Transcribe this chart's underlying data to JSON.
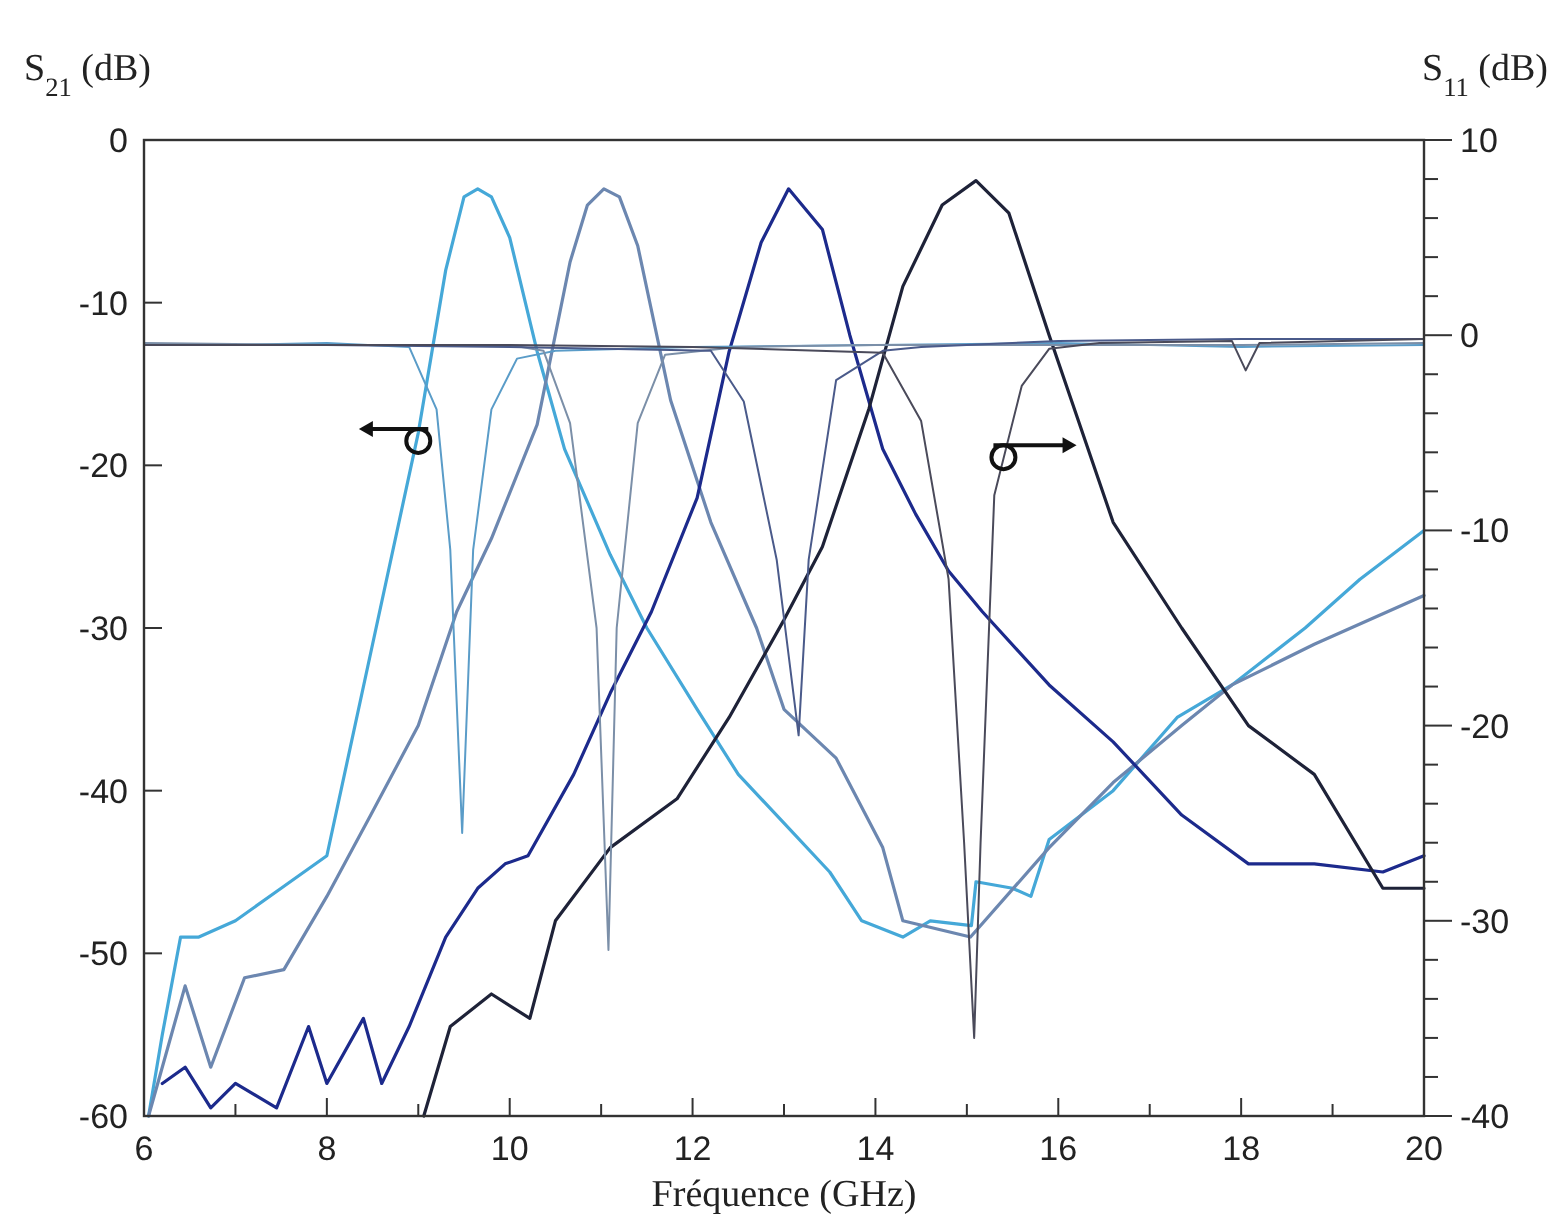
{
  "chart_data": {
    "type": "line",
    "xlabel": "Fréquence (GHz)",
    "ylabel": "S$_{21}$ (dB)",
    "y2label": "S$_{11}$ (dB)",
    "xlim": [
      6,
      20
    ],
    "xticks": [
      6,
      {
        "value": 7,
        "label": null
      },
      8,
      {
        "value": 9,
        "label": null
      },
      10,
      {
        "value": 11,
        "label": null
      },
      12,
      {
        "value": 13,
        "label": null
      },
      14,
      {
        "value": 15,
        "label": null
      },
      16,
      {
        "value": 17,
        "label": null
      },
      18,
      {
        "value": 19,
        "label": null
      },
      20
    ],
    "ylim": [
      -60,
      0
    ],
    "yticks": [
      -60,
      -50,
      -40,
      -30,
      -20,
      -10,
      0
    ],
    "y2lim": [
      -40,
      10
    ],
    "y2ticks": [
      -40,
      {
        "value": -38,
        "label": null
      },
      {
        "value": -36,
        "label": null
      },
      {
        "value": -34,
        "label": null
      },
      {
        "value": -32,
        "label": null
      },
      -30,
      {
        "value": -28,
        "label": null
      },
      {
        "value": -26,
        "label": null
      },
      {
        "value": -24,
        "label": null
      },
      {
        "value": -22,
        "label": null
      },
      -20,
      {
        "value": -18,
        "label": null
      },
      {
        "value": -16,
        "label": null
      },
      {
        "value": -14,
        "label": null
      },
      {
        "value": -12,
        "label": null
      },
      -10,
      {
        "value": -8,
        "label": null
      },
      {
        "value": -6,
        "label": null
      },
      {
        "value": -4,
        "label": null
      },
      {
        "value": -2,
        "label": null
      },
      0,
      {
        "value": 2,
        "label": null
      },
      {
        "value": 4,
        "label": null
      },
      {
        "value": 6,
        "label": null
      },
      {
        "value": 8,
        "label": null
      },
      10
    ],
    "grid": false,
    "marker": "none",
    "line_style": "solid",
    "series": [
      {
        "color": "#45a8d8",
        "x": [
          6.05,
          6.2,
          6.4,
          6.6,
          7,
          7.5,
          8,
          8.5,
          9,
          9.3,
          9.5,
          9.65,
          9.8,
          10,
          10.3,
          10.6,
          11.1,
          11.5,
          12.05,
          12.5,
          13,
          13.5,
          13.85,
          14.3,
          14.6,
          15.05,
          15.1,
          15.5,
          15.7,
          15.9,
          16.6,
          17.3,
          17.9,
          18.7,
          19.3,
          20
        ],
        "values": [
          -60,
          -55,
          -49,
          -49,
          -48,
          -46,
          -44,
          -31,
          -18,
          -8,
          -3.5,
          -3,
          -3.5,
          -6,
          -13,
          -19,
          -25.5,
          -30,
          -35,
          -39,
          -42,
          -45,
          -48,
          -49,
          -48,
          -48.3,
          -45.6,
          -46,
          -46.5,
          -43,
          -40,
          -35.5,
          -33.5,
          -30,
          -27,
          -24
        ]
      },
      {
        "color": "#6c87b0",
        "x": [
          6.05,
          6.15,
          6.45,
          6.73,
          7.1,
          7.53,
          8,
          8.48,
          9,
          9.42,
          9.8,
          10.3,
          10.66,
          10.85,
          11.03,
          11.2,
          11.4,
          11.76,
          12.2,
          12.7,
          13,
          13.57,
          14.08,
          14.3,
          15.04,
          15.9,
          16.6,
          17.35,
          17.9,
          18.8,
          20
        ],
        "values": [
          -60,
          -58,
          -52,
          -57,
          -51.5,
          -51,
          -46.5,
          -41.5,
          -36,
          -29,
          -24.5,
          -17.5,
          -7.5,
          -4,
          -3,
          -3.5,
          -6.5,
          -16,
          -23.5,
          -30,
          -35,
          -38,
          -43.5,
          -48,
          -49,
          -43.5,
          -39.5,
          -36,
          -33.5,
          -31,
          -28
        ]
      },
      {
        "color": "#1c2a8c",
        "x": [
          6.2,
          6.45,
          6.73,
          7,
          7.45,
          7.8,
          8,
          8.4,
          8.6,
          8.9,
          9.3,
          9.65,
          9.95,
          10.2,
          10.7,
          11.1,
          11.55,
          12.05,
          12.4,
          12.75,
          13.05,
          13.42,
          13.72,
          14.08,
          14.44,
          14.8,
          15.17,
          15.9,
          16.6,
          17.35,
          18.08,
          18.8,
          19.55,
          20
        ],
        "values": [
          -58,
          -57,
          -59.5,
          -58,
          -59.5,
          -54.5,
          -58,
          -54,
          -58,
          -54.5,
          -49,
          -46,
          -44.5,
          -44,
          -39,
          -34,
          -29,
          -22,
          -13,
          -6.3,
          -3,
          -5.5,
          -12,
          -19,
          -23,
          -26.5,
          -29,
          -33.5,
          -37,
          -41.5,
          -44.5,
          -44.5,
          -45,
          -44
        ]
      },
      {
        "color": "#1e2238",
        "x": [
          9.06,
          9.35,
          9.8,
          10.22,
          10.5,
          11.1,
          11.83,
          12.4,
          13,
          13.42,
          13.93,
          14.3,
          14.73,
          15.1,
          15.46,
          15.9,
          16.6,
          17.35,
          18.08,
          18.8,
          19.55,
          20
        ],
        "values": [
          -60,
          -54.5,
          -52.5,
          -54,
          -48,
          -43.5,
          -40.5,
          -35.5,
          -29.5,
          -25,
          -16.5,
          -9,
          -4,
          -2.5,
          -4.5,
          -12,
          -23.5,
          -30,
          -36,
          -39,
          -46,
          -46
        ]
      },
      {
        "color": "#5a9cc8",
        "axis": "y2",
        "x": [
          6,
          7,
          8,
          8.9,
          9.2,
          9.35,
          9.48,
          9.6,
          9.8,
          10.08,
          10.5,
          12,
          14,
          16,
          18,
          20
        ],
        "values": [
          -0.5,
          -0.5,
          -0.4,
          -0.6,
          -3.8,
          -11,
          -25.5,
          -11,
          -3.8,
          -1.2,
          -0.8,
          -0.6,
          -0.5,
          -0.4,
          -0.6,
          -0.5
        ]
      },
      {
        "color": "#7b8fa8",
        "axis": "y2",
        "x": [
          6,
          8,
          10,
          10.37,
          10.66,
          10.95,
          11.08,
          11.17,
          11.4,
          11.7,
          12.5,
          14,
          16,
          18,
          20
        ],
        "values": [
          -0.4,
          -0.5,
          -0.5,
          -0.8,
          -4.5,
          -15,
          -31.5,
          -15,
          -4.5,
          -1,
          -0.6,
          -0.5,
          -0.5,
          -0.5,
          -0.4
        ]
      },
      {
        "color": "#4a5a8a",
        "axis": "y2",
        "x": [
          6,
          8,
          10,
          12.2,
          12.56,
          12.92,
          13.16,
          13.27,
          13.57,
          14.08,
          14.5,
          16,
          18,
          20
        ],
        "values": [
          -0.5,
          -0.5,
          -0.6,
          -0.8,
          -3.4,
          -11.5,
          -20.5,
          -11.5,
          -2.3,
          -0.8,
          -0.6,
          -0.3,
          -0.2,
          -0.2
        ]
      },
      {
        "color": "#4a4a5a",
        "axis": "y2",
        "x": [
          6,
          8,
          10,
          12,
          14.08,
          14.5,
          14.8,
          14.97,
          15.08,
          15.15,
          15.3,
          15.6,
          15.9,
          16.45,
          17.9,
          18.05,
          18.2,
          20
        ],
        "values": [
          -0.5,
          -0.5,
          -0.5,
          -0.6,
          -0.9,
          -4.4,
          -12.5,
          -26,
          -36,
          -26,
          -8.2,
          -2.6,
          -0.7,
          -0.4,
          -0.3,
          -1.8,
          -0.4,
          -0.2
        ]
      }
    ]
  }
}
